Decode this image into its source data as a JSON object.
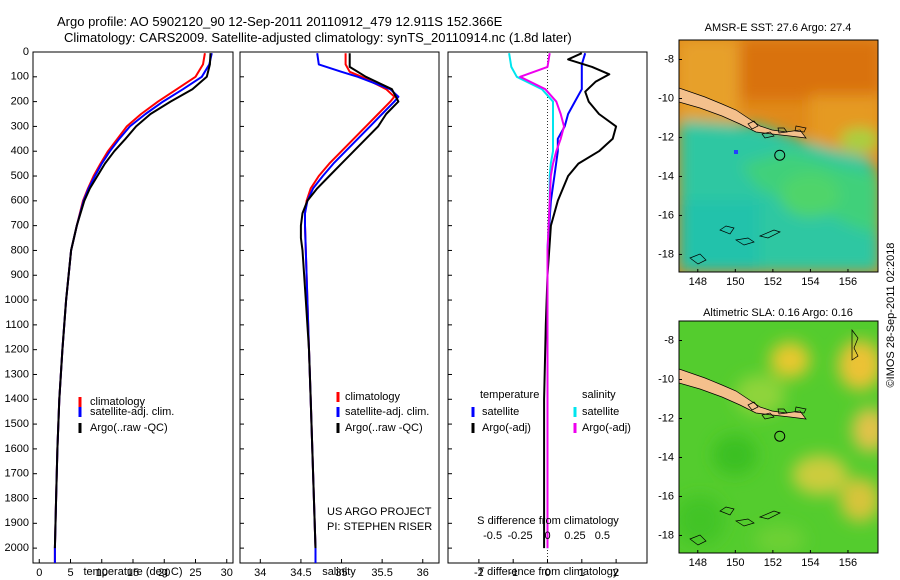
{
  "header": {
    "title_line1": "Argo profile: AO 5902120_90 12-Sep-2011 20110912_479 12.911S 152.366E",
    "title_line2": "Climatology: CARS2009. Satellite-adjusted climatology: synTS_20110914.nc (1.8d later)"
  },
  "colors": {
    "climatology": "#ff0000",
    "satellite": "#0000ff",
    "argo": "#000000",
    "salinity_satellite": "#00e5ee",
    "salinity_argo": "#ee00ee",
    "land": "#f4c08c"
  },
  "depth_axis": {
    "ylim": [
      0,
      2060
    ],
    "ticks": [
      0,
      100,
      200,
      300,
      400,
      500,
      600,
      700,
      800,
      900,
      1000,
      1100,
      1200,
      1300,
      1400,
      1500,
      1600,
      1700,
      1800,
      1900,
      2000
    ]
  },
  "credit": {
    "line1": "US ARGO PROJECT",
    "line2": "PI: STEPHEN RISER",
    "watermark": "©IMOS 28-Sep-2011 02:2018"
  },
  "chart_data": [
    {
      "type": "line",
      "id": "temperature",
      "title": "",
      "xlabel": "temperature (deg C)",
      "ylabel": "depth",
      "xlim": [
        -1,
        31
      ],
      "ylim": [
        0,
        2060
      ],
      "xticks": [
        0,
        5,
        10,
        15,
        20,
        25,
        30
      ],
      "legend": {
        "position": "center",
        "labels": [
          "climatology",
          "satellite-adj. clim.",
          "Argo(..raw -QC)"
        ]
      },
      "series": [
        {
          "name": "climatology",
          "color": "#ff0000",
          "depth": [
            5,
            50,
            100,
            150,
            200,
            250,
            300,
            350,
            400,
            450,
            500,
            550,
            600,
            700,
            800,
            1000,
            1200,
            1400,
            1600,
            1800,
            2000,
            2060
          ],
          "values": [
            26.5,
            26.2,
            25.0,
            22.0,
            19.0,
            16.3,
            14.0,
            12.5,
            11.0,
            9.8,
            8.7,
            7.8,
            7.0,
            6.0,
            5.1,
            4.3,
            3.7,
            3.2,
            2.9,
            2.7,
            2.5,
            2.5
          ]
        },
        {
          "name": "satellite-adj. clim.",
          "color": "#0000ff",
          "depth": [
            5,
            50,
            100,
            150,
            200,
            250,
            300,
            350,
            400,
            450,
            500,
            550,
            600,
            700,
            800,
            1000,
            1200,
            1400,
            1600,
            1800,
            2000,
            2060
          ],
          "values": [
            27.6,
            27.2,
            26.0,
            23.0,
            19.8,
            17.0,
            14.5,
            12.8,
            11.3,
            10.0,
            8.9,
            7.9,
            7.1,
            6.0,
            5.1,
            4.3,
            3.7,
            3.2,
            2.9,
            2.7,
            2.5,
            2.5
          ]
        },
        {
          "name": "Argo(..raw -QC)",
          "color": "#000000",
          "depth": [
            5,
            50,
            100,
            150,
            200,
            250,
            300,
            350,
            400,
            450,
            500,
            550,
            600,
            700,
            800,
            1000,
            1200,
            1400,
            1600,
            1800,
            2000
          ],
          "values": [
            27.4,
            27.3,
            26.8,
            24.5,
            21.0,
            17.8,
            15.5,
            13.8,
            12.0,
            10.5,
            9.3,
            8.1,
            7.2,
            6.0,
            5.1,
            4.3,
            3.7,
            3.2,
            2.9,
            2.7,
            2.5
          ]
        }
      ]
    },
    {
      "type": "line",
      "id": "salinity",
      "title": "",
      "xlabel": "salinity",
      "ylabel": "depth",
      "xlim": [
        33.75,
        36.2
      ],
      "ylim": [
        0,
        2060
      ],
      "xticks": [
        34,
        34.5,
        35,
        35.5,
        36
      ],
      "legend": {
        "position": "center",
        "labels": [
          "climatology",
          "satellite-adj. clim.",
          "Argo(..raw -QC)"
        ]
      },
      "series": [
        {
          "name": "climatology",
          "color": "#ff0000",
          "depth": [
            5,
            50,
            80,
            100,
            150,
            180,
            200,
            250,
            300,
            350,
            400,
            450,
            500,
            550,
            600,
            650,
            700,
            800,
            1000,
            1200,
            1400,
            1600,
            1800,
            2000,
            2060
          ],
          "values": [
            35.05,
            35.05,
            35.1,
            35.25,
            35.55,
            35.65,
            35.6,
            35.45,
            35.3,
            35.15,
            35.0,
            34.85,
            34.72,
            34.62,
            34.57,
            34.55,
            34.55,
            34.56,
            34.58,
            34.6,
            34.62,
            34.64,
            34.66,
            34.68,
            34.68
          ]
        },
        {
          "name": "satellite-adj. clim.",
          "color": "#0000ff",
          "depth": [
            5,
            50,
            80,
            100,
            150,
            180,
            200,
            250,
            300,
            350,
            400,
            450,
            500,
            550,
            600,
            650,
            700,
            800,
            1000,
            1200,
            1400,
            1600,
            1800,
            2000,
            2060
          ],
          "values": [
            34.7,
            34.72,
            35.0,
            35.2,
            35.6,
            35.7,
            35.65,
            35.5,
            35.35,
            35.2,
            35.05,
            34.9,
            34.77,
            34.65,
            34.58,
            34.55,
            34.55,
            34.56,
            34.58,
            34.6,
            34.62,
            34.64,
            34.66,
            34.68,
            34.68
          ]
        },
        {
          "name": "Argo(..raw -QC)",
          "color": "#000000",
          "depth": [
            5,
            60,
            100,
            150,
            200,
            250,
            300,
            350,
            400,
            450,
            500,
            550,
            600,
            650,
            700,
            750,
            800,
            1000,
            1200,
            1400,
            1600,
            1800,
            2000
          ],
          "values": [
            35.1,
            35.1,
            35.3,
            35.62,
            35.7,
            35.55,
            35.45,
            35.3,
            35.15,
            35.0,
            34.85,
            34.7,
            34.58,
            34.52,
            34.5,
            34.5,
            34.52,
            34.56,
            34.6,
            34.62,
            34.64,
            34.66,
            34.68
          ]
        }
      ]
    },
    {
      "type": "line",
      "id": "differences",
      "title": "",
      "xlabel": "T difference from climatology",
      "xlabel_top": "S difference from climatology",
      "ylabel": "depth",
      "xlim": [
        -2.9,
        2.9
      ],
      "ylim": [
        0,
        2060
      ],
      "xticks": [
        -2,
        -1,
        0,
        1,
        2
      ],
      "s_ticks": [
        -0.5,
        -0.25,
        0,
        0.25,
        0.5
      ],
      "s_tick_labels": [
        "-0.5",
        "-0.25",
        "0",
        "0.25",
        "0.5"
      ],
      "legend": {
        "position": "center",
        "temperature_header": "temperature",
        "salinity_header": "salinity",
        "labels": [
          "satellite",
          "Argo(-adj)",
          "satellite",
          "Argo(-adj)"
        ]
      },
      "series": [
        {
          "name": "temperature satellite",
          "color": "#0000ff",
          "depth": [
            5,
            50,
            100,
            150,
            200,
            250,
            300,
            350,
            400,
            500,
            600,
            800,
            1000,
            1400,
            2000
          ],
          "values": [
            1.1,
            1.0,
            1.0,
            1.0,
            0.8,
            0.6,
            0.5,
            0.3,
            0.3,
            0.2,
            0.1,
            0.0,
            0.0,
            0.0,
            0.0
          ]
        },
        {
          "name": "temperature Argo(-adj)",
          "color": "#000000",
          "depth": [
            5,
            30,
            60,
            90,
            120,
            160,
            200,
            250,
            300,
            350,
            400,
            450,
            500,
            600,
            700,
            900,
            1100,
            1400,
            1700,
            2000
          ],
          "values": [
            1.0,
            0.6,
            1.3,
            1.8,
            1.4,
            1.1,
            1.2,
            1.5,
            2.0,
            1.9,
            1.5,
            0.9,
            0.6,
            0.3,
            0.1,
            0.0,
            -0.05,
            -0.1,
            -0.1,
            -0.1
          ]
        },
        {
          "name": "salinity satellite",
          "color": "#00e5ee",
          "depth": [
            5,
            60,
            100,
            150,
            200,
            250,
            300,
            350,
            400,
            450,
            500,
            600,
            800,
            1000,
            1400,
            2000
          ],
          "values": [
            -0.35,
            -0.33,
            -0.28,
            -0.05,
            0.05,
            0.05,
            0.05,
            0.05,
            0.05,
            0.03,
            0.02,
            0.02,
            0.0,
            0.0,
            0.0,
            0.0
          ]
        },
        {
          "name": "salinity Argo(-adj)",
          "color": "#ee00ee",
          "depth": [
            5,
            60,
            100,
            150,
            200,
            250,
            300,
            350,
            400,
            450,
            500,
            600,
            800,
            1000,
            1400,
            2000
          ],
          "values": [
            0.02,
            0.0,
            -0.25,
            -0.02,
            0.08,
            0.12,
            0.15,
            0.12,
            0.08,
            0.05,
            0.03,
            0.02,
            0.0,
            0.0,
            0.0,
            0.0
          ]
        }
      ]
    }
  ],
  "maps": [
    {
      "title": "AMSR-E SST: 27.6 Argo: 27.4",
      "xticks": [
        "148",
        "150",
        "152",
        "154",
        "156"
      ],
      "yticks": [
        "-8",
        "-10",
        "-12",
        "-14",
        "-16",
        "-18"
      ],
      "float_position": {
        "lon": 152.366,
        "lat": -12.911
      }
    },
    {
      "title": "Altimetric SLA: 0.16 Argo: 0.16",
      "xticks": [
        "148",
        "150",
        "152",
        "154",
        "156"
      ],
      "yticks": [
        "-8",
        "-10",
        "-12",
        "-14",
        "-16",
        "-18"
      ],
      "float_position": {
        "lon": 152.366,
        "lat": -12.911
      }
    }
  ]
}
